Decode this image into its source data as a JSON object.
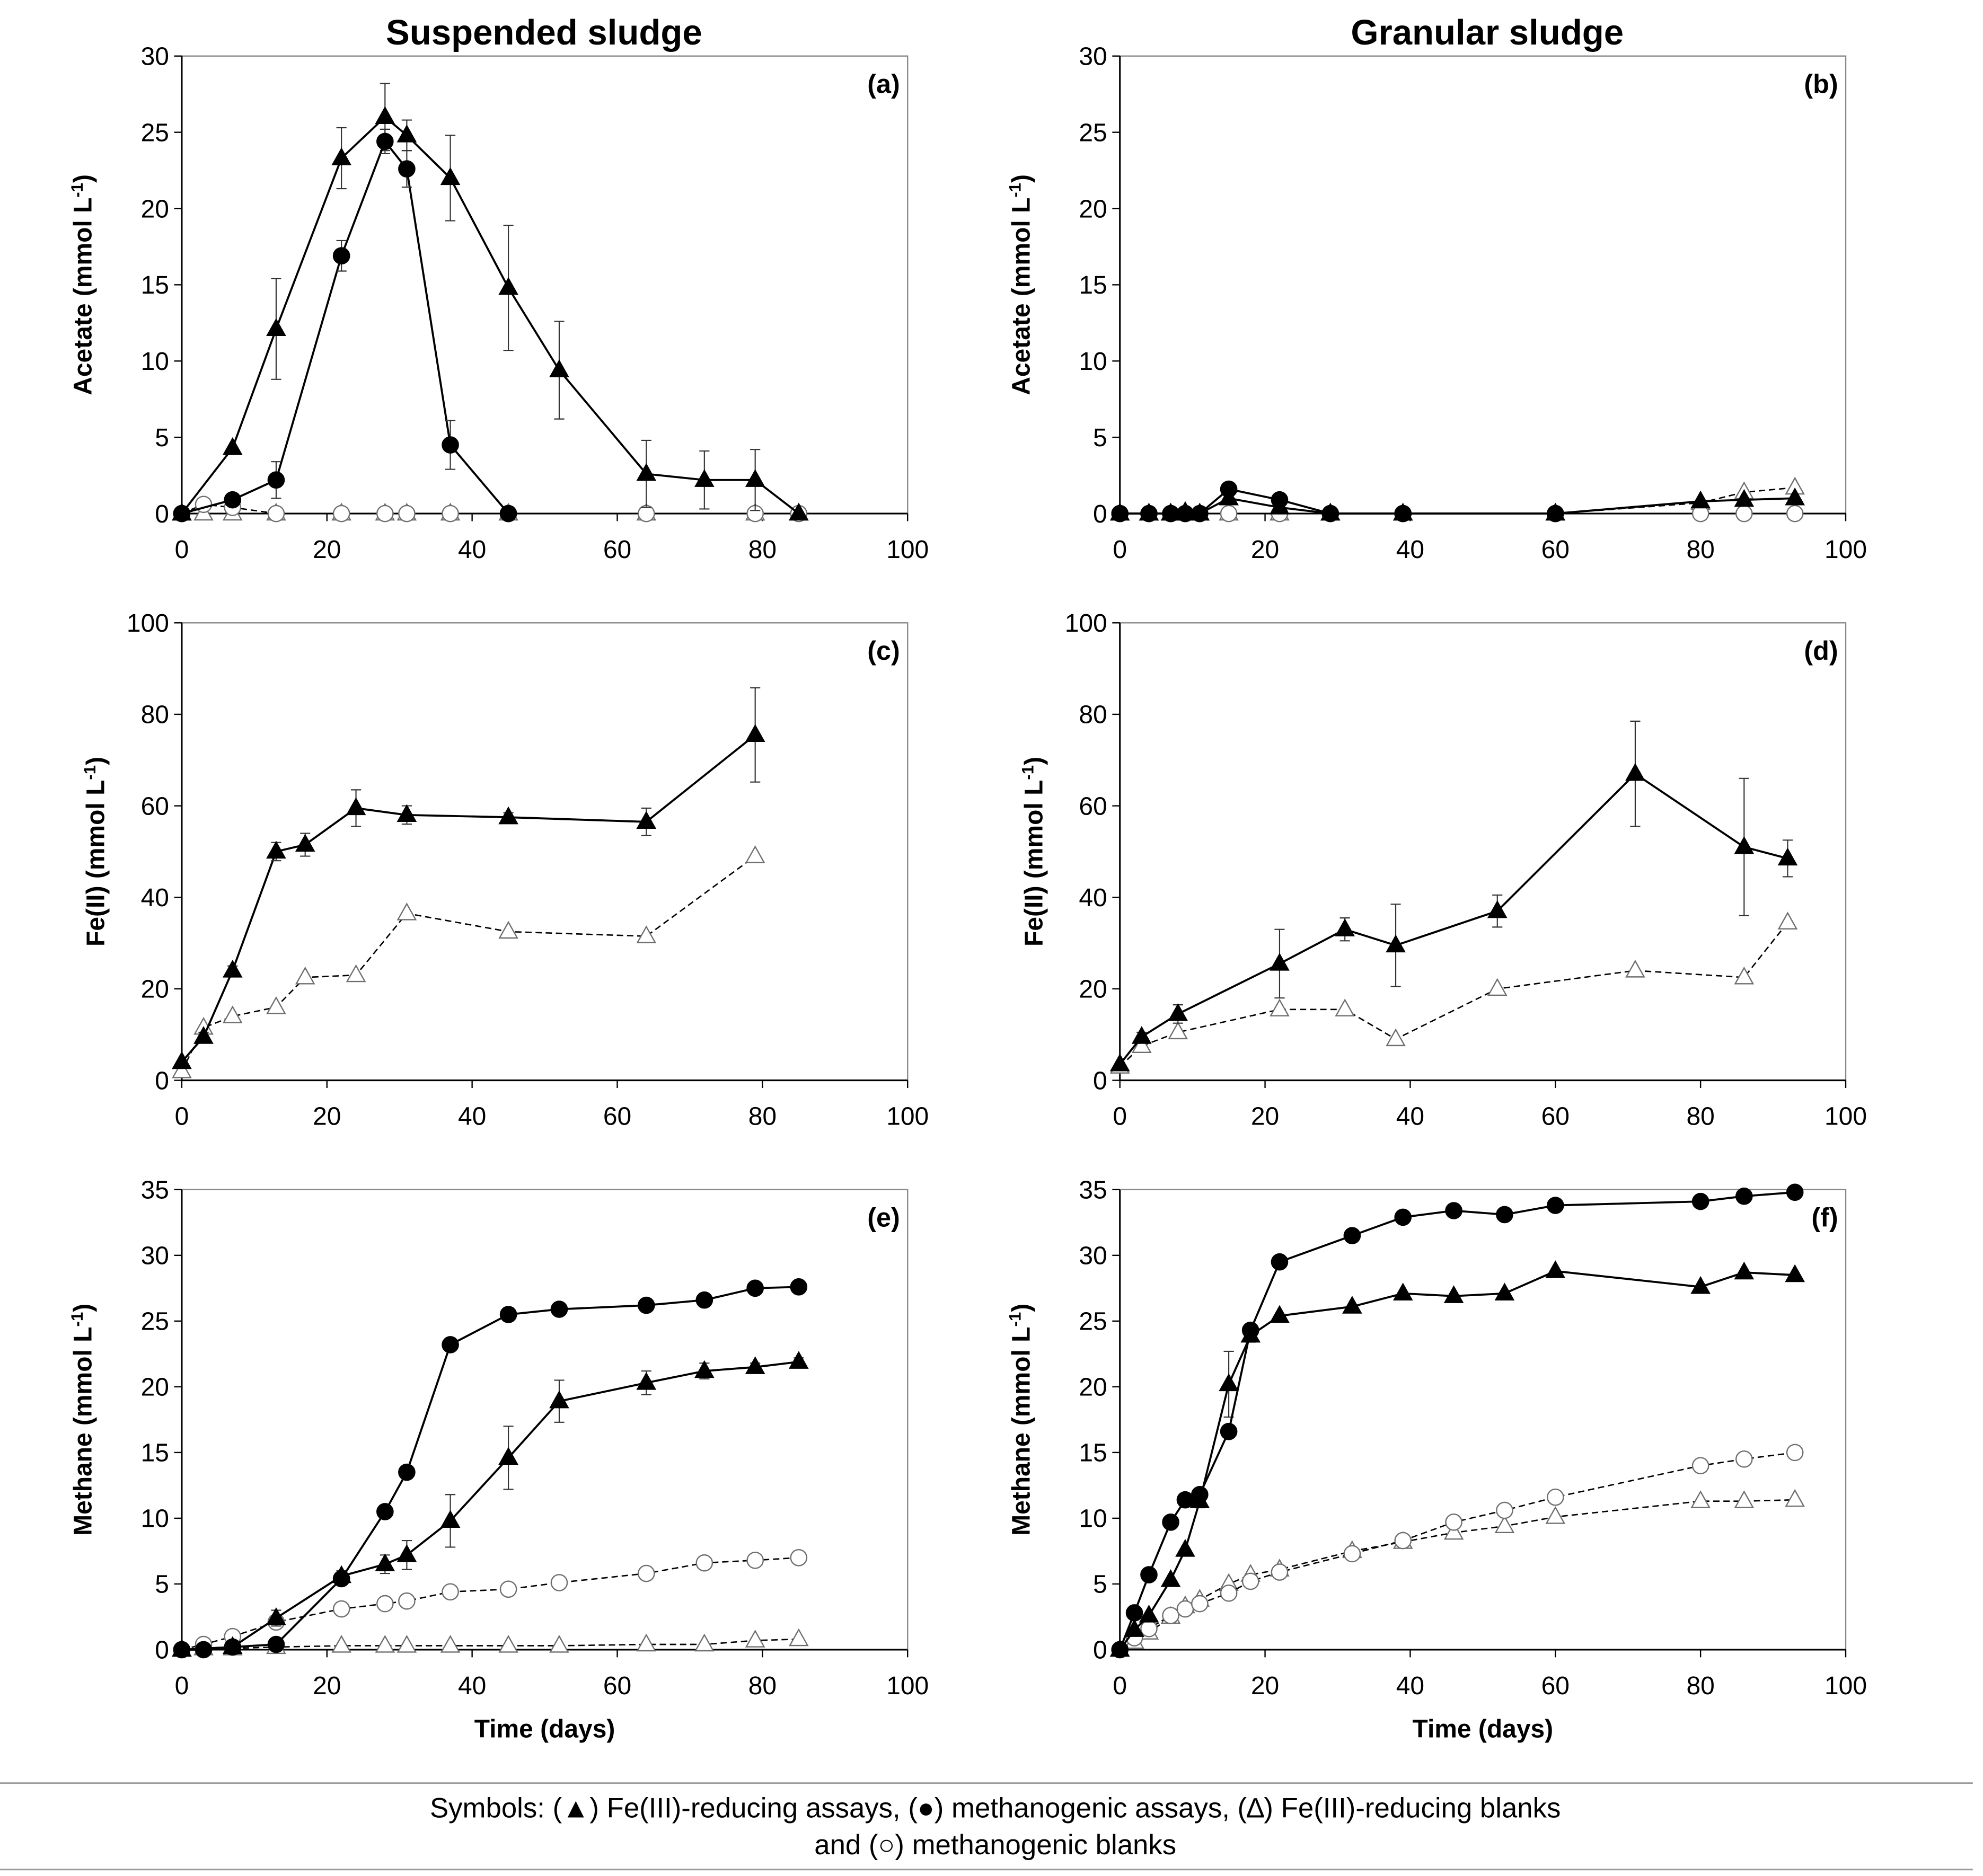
{
  "headers": [
    "Suspended sludge",
    "Granular sludge"
  ],
  "legend": {
    "lead": "Symbols:",
    "entries": [
      {
        "symbol": "▲",
        "label": "Fe(III)-reducing assays",
        "marker": "filled-triangle"
      },
      {
        "symbol": "●",
        "label": "methanogenic assays",
        "marker": "filled-circle"
      },
      {
        "symbol": "∆",
        "label": "Fe(III)-reducing blanks",
        "marker": "open-triangle"
      },
      {
        "symbol": "○",
        "label": "methanogenic blanks",
        "marker": "open-circle"
      }
    ],
    "joiner": "and"
  },
  "colors": {
    "ink": "#000000",
    "blank_marker": "#6f6f6f",
    "frame": "#8a8a8a",
    "error_bar": "#333333",
    "rule": "#9a9a9a",
    "background": "#ffffff"
  },
  "chart_data": [
    {
      "panel": "(a)",
      "type": "line",
      "column": 0,
      "ylabel": {
        "text": "Acetate (mmol L",
        "sup": "-1",
        "close": ")"
      },
      "xlabel": "",
      "xlim": [
        0,
        100
      ],
      "ylim": [
        0,
        30
      ],
      "xticks": [
        0,
        20,
        40,
        60,
        80,
        100
      ],
      "yticks": [
        0,
        5,
        10,
        15,
        20,
        25,
        30
      ],
      "series": [
        {
          "marker": "open-triangle",
          "x": [
            0,
            3,
            7,
            13,
            22,
            28,
            31,
            37,
            45,
            64,
            79,
            85
          ],
          "y": [
            0,
            0,
            0,
            0,
            0,
            0,
            0,
            0,
            0,
            0,
            0,
            0
          ]
        },
        {
          "marker": "open-circle",
          "x": [
            0,
            3,
            7,
            13,
            22,
            28,
            31,
            37,
            45,
            64,
            79,
            85
          ],
          "y": [
            0,
            0.6,
            0.4,
            0,
            0,
            0,
            0,
            0,
            0,
            0,
            0,
            0
          ]
        },
        {
          "marker": "filled-triangle",
          "x": [
            0,
            7,
            13,
            22,
            28,
            31,
            37,
            45,
            52,
            64,
            72,
            79,
            85
          ],
          "y": [
            0,
            4.3,
            12.1,
            23.3,
            26.0,
            24.8,
            22.0,
            14.8,
            9.4,
            2.6,
            2.2,
            2.2,
            0
          ],
          "err": [
            0,
            0,
            3.3,
            2.0,
            2.2,
            1.0,
            2.8,
            4.1,
            3.2,
            2.2,
            1.9,
            2.0,
            0
          ]
        },
        {
          "marker": "filled-circle",
          "x": [
            0,
            7,
            13,
            22,
            28,
            31,
            37,
            45
          ],
          "y": [
            0,
            0.9,
            2.2,
            16.9,
            24.4,
            22.6,
            4.5,
            0
          ],
          "err": [
            0,
            0,
            1.2,
            1.0,
            0.8,
            1.2,
            1.6,
            0
          ]
        }
      ]
    },
    {
      "panel": "(b)",
      "type": "line",
      "column": 1,
      "ylabel": {
        "text": "Acetate (mmol L",
        "sup": "-1",
        "close": ")"
      },
      "xlabel": "",
      "xlim": [
        0,
        100
      ],
      "ylim": [
        0,
        30
      ],
      "xticks": [
        0,
        20,
        40,
        60,
        80,
        100
      ],
      "yticks": [
        0,
        5,
        10,
        15,
        20,
        25,
        30
      ],
      "series": [
        {
          "marker": "open-triangle",
          "x": [
            0,
            4,
            7,
            9,
            11,
            15,
            22,
            29,
            39,
            60,
            80,
            86,
            93
          ],
          "y": [
            0,
            0,
            0,
            0,
            0,
            0,
            0,
            0,
            0,
            0,
            0.7,
            1.4,
            1.7
          ]
        },
        {
          "marker": "open-circle",
          "x": [
            0,
            4,
            7,
            9,
            11,
            15,
            22,
            29,
            39,
            60,
            80,
            86,
            93
          ],
          "y": [
            0,
            0,
            0,
            0,
            0,
            0,
            0,
            0,
            0,
            0,
            0,
            0,
            0
          ]
        },
        {
          "marker": "filled-triangle",
          "x": [
            0,
            4,
            7,
            9,
            11,
            15,
            22,
            29,
            39,
            60,
            80,
            86,
            93
          ],
          "y": [
            0,
            0,
            0,
            0.1,
            0,
            1.0,
            0.4,
            0,
            0,
            0,
            0.8,
            0.9,
            1.0
          ]
        },
        {
          "marker": "filled-circle",
          "x": [
            0,
            4,
            7,
            9,
            11,
            15,
            22,
            29,
            39,
            60
          ],
          "y": [
            0,
            0,
            0,
            0,
            0,
            1.6,
            0.9,
            0,
            0,
            0
          ]
        }
      ]
    },
    {
      "panel": "(c)",
      "type": "line",
      "column": 0,
      "ylabel": {
        "text": "Fe(II) (mmol L",
        "sup": "-1",
        "close": ")"
      },
      "xlabel": "",
      "xlim": [
        0,
        100
      ],
      "ylim": [
        0,
        100
      ],
      "xticks": [
        0,
        20,
        40,
        60,
        80,
        100
      ],
      "yticks": [
        0,
        20,
        40,
        60,
        80,
        100
      ],
      "series": [
        {
          "marker": "open-triangle",
          "x": [
            0,
            3,
            7,
            13,
            17,
            24,
            31,
            45,
            64,
            79
          ],
          "y": [
            2,
            11.5,
            14,
            16,
            22.5,
            23,
            36.5,
            32.5,
            31.5,
            49
          ]
        },
        {
          "marker": "filled-triangle",
          "x": [
            0,
            3,
            7,
            13,
            17,
            24,
            31,
            45,
            64,
            79
          ],
          "y": [
            4,
            9.5,
            24,
            50,
            51.5,
            59.5,
            58,
            57.5,
            56.5,
            75.5
          ],
          "err": [
            0,
            1,
            1,
            2,
            2.5,
            4,
            2,
            1,
            3,
            10.3
          ]
        }
      ]
    },
    {
      "panel": "(d)",
      "type": "line",
      "column": 1,
      "ylabel": {
        "text": "Fe(II) (mmol L",
        "sup": "-1",
        "close": ")"
      },
      "xlabel": "",
      "xlim": [
        0,
        100
      ],
      "ylim": [
        0,
        100
      ],
      "xticks": [
        0,
        20,
        40,
        60,
        80,
        100
      ],
      "yticks": [
        0,
        20,
        40,
        60,
        80,
        100
      ],
      "series": [
        {
          "marker": "open-triangle",
          "x": [
            0,
            3,
            8,
            22,
            31,
            38,
            52,
            71,
            86,
            92
          ],
          "y": [
            3,
            7.5,
            10.5,
            15.5,
            15.5,
            9,
            20,
            24,
            22.5,
            34.5
          ]
        },
        {
          "marker": "filled-triangle",
          "x": [
            0,
            3,
            8,
            22,
            31,
            38,
            52,
            71,
            86,
            92
          ],
          "y": [
            3.5,
            9.5,
            14.5,
            25.5,
            33,
            29.5,
            37,
            67,
            51,
            48.5
          ],
          "err": [
            0,
            1,
            2,
            7.5,
            2.5,
            9,
            3.5,
            11.5,
            15,
            4
          ]
        }
      ]
    },
    {
      "panel": "(e)",
      "type": "line",
      "column": 0,
      "ylabel": {
        "text": "Methane (mmol L",
        "sup": "-1",
        "close": ")"
      },
      "xlabel": "Time (days)",
      "xlim": [
        0,
        100
      ],
      "ylim": [
        0,
        35
      ],
      "xticks": [
        0,
        20,
        40,
        60,
        80,
        100
      ],
      "yticks": [
        0,
        5,
        10,
        15,
        20,
        25,
        30,
        35
      ],
      "series": [
        {
          "marker": "open-triangle",
          "x": [
            0,
            3,
            7,
            13,
            22,
            28,
            31,
            37,
            45,
            52,
            64,
            72,
            79,
            85
          ],
          "y": [
            0,
            0.1,
            0.1,
            0.2,
            0.3,
            0.3,
            0.3,
            0.3,
            0.3,
            0.3,
            0.4,
            0.4,
            0.7,
            0.8
          ]
        },
        {
          "marker": "open-circle",
          "x": [
            0,
            3,
            7,
            13,
            22,
            28,
            31,
            37,
            45,
            52,
            64,
            72,
            79,
            85
          ],
          "y": [
            0,
            0.4,
            1.0,
            2.1,
            3.1,
            3.5,
            3.7,
            4.4,
            4.6,
            5.1,
            5.8,
            6.6,
            6.8,
            7.0
          ]
        },
        {
          "marker": "filled-triangle",
          "x": [
            0,
            7,
            13,
            22,
            28,
            31,
            37,
            45,
            52,
            64,
            72,
            79,
            85
          ],
          "y": [
            0,
            0.2,
            2.4,
            5.6,
            6.5,
            7.2,
            9.8,
            14.6,
            18.9,
            20.3,
            21.2,
            21.5,
            21.9
          ],
          "err": [
            0,
            0.3,
            0.6,
            0.4,
            0.7,
            1.1,
            2.0,
            2.4,
            1.6,
            0.9,
            0.6,
            0.3,
            0.3
          ]
        },
        {
          "marker": "filled-circle",
          "x": [
            0,
            3,
            7,
            13,
            22,
            28,
            31,
            37,
            45,
            52,
            64,
            72,
            79,
            85
          ],
          "y": [
            0,
            0,
            0.2,
            0.4,
            5.4,
            10.5,
            13.5,
            23.2,
            25.5,
            25.9,
            26.2,
            26.6,
            27.5,
            27.6
          ]
        }
      ]
    },
    {
      "panel": "(f)",
      "type": "line",
      "column": 1,
      "ylabel": {
        "text": "Methane (mmol L",
        "sup": "-1",
        "close": ")"
      },
      "xlabel": "Time (days)",
      "xlim": [
        0,
        100
      ],
      "ylim": [
        0,
        35
      ],
      "xticks": [
        0,
        20,
        40,
        60,
        80,
        100
      ],
      "yticks": [
        0,
        5,
        10,
        15,
        20,
        25,
        30,
        35
      ],
      "series": [
        {
          "marker": "open-triangle",
          "x": [
            0,
            2,
            4,
            7,
            9,
            11,
            15,
            18,
            22,
            32,
            39,
            46,
            53,
            60,
            80,
            86,
            93
          ],
          "y": [
            0,
            0.6,
            1.3,
            2.5,
            3.3,
            3.8,
            5.0,
            5.7,
            6.1,
            7.5,
            8.2,
            8.9,
            9.4,
            10.1,
            11.3,
            11.3,
            11.4
          ]
        },
        {
          "marker": "open-circle",
          "x": [
            0,
            2,
            4,
            7,
            9,
            11,
            15,
            18,
            22,
            32,
            39,
            46,
            53,
            60,
            80,
            86,
            93
          ],
          "y": [
            0,
            0.9,
            1.6,
            2.6,
            3.1,
            3.5,
            4.3,
            5.2,
            5.9,
            7.3,
            8.3,
            9.7,
            10.6,
            11.6,
            14.0,
            14.5,
            15.0
          ]
        },
        {
          "marker": "filled-triangle",
          "x": [
            0,
            2,
            4,
            7,
            9,
            11,
            15,
            18,
            22,
            32,
            39,
            46,
            53,
            60,
            80,
            86,
            93
          ],
          "y": [
            0,
            1.5,
            2.6,
            5.3,
            7.6,
            11.3,
            20.2,
            23.9,
            25.4,
            26.1,
            27.1,
            26.9,
            27.1,
            28.8,
            27.6,
            28.7,
            28.5
          ],
          "err": [
            0,
            0,
            0,
            0,
            0,
            0.5,
            2.5,
            0.5,
            0,
            0,
            0,
            0,
            0,
            0,
            0,
            0,
            0
          ]
        },
        {
          "marker": "filled-circle",
          "x": [
            0,
            2,
            4,
            7,
            9,
            11,
            15,
            18,
            22,
            32,
            39,
            46,
            53,
            60,
            80,
            86,
            93
          ],
          "y": [
            0,
            2.8,
            5.7,
            9.7,
            11.4,
            11.8,
            16.6,
            24.3,
            29.5,
            31.5,
            32.9,
            33.4,
            33.1,
            33.8,
            34.1,
            34.5,
            34.8
          ]
        }
      ]
    }
  ]
}
